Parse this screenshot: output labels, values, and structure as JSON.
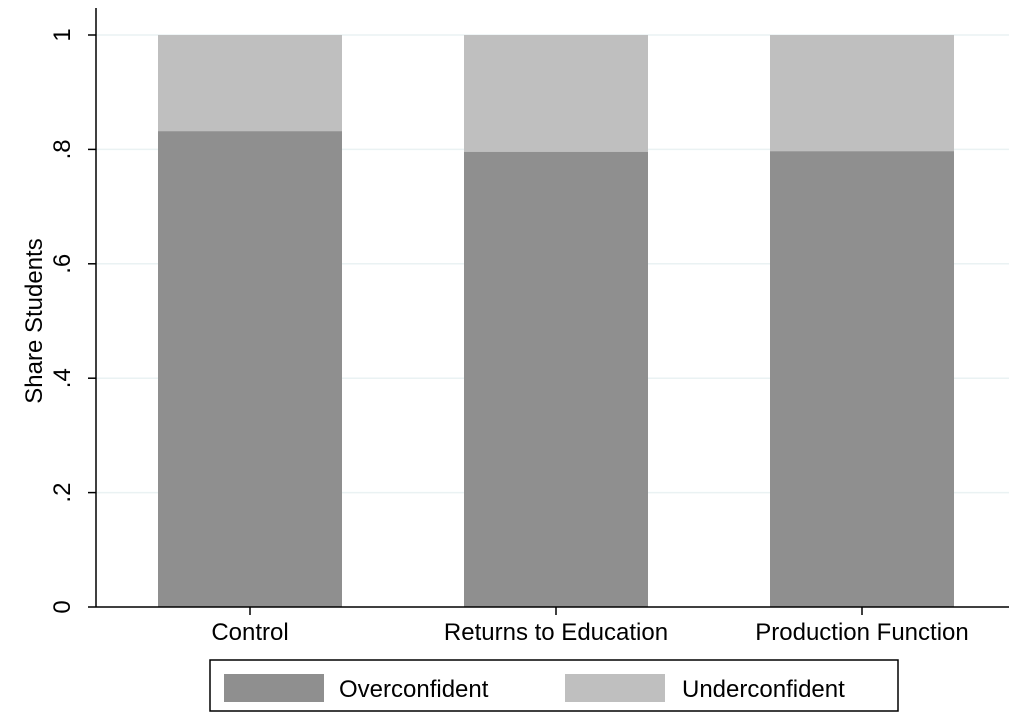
{
  "chart_data": {
    "type": "bar",
    "stacked": true,
    "ylabel": "Share Students",
    "xlabel": "",
    "ylim": [
      0,
      1
    ],
    "yticks": [
      0,
      0.2,
      0.4,
      0.6,
      0.8,
      1
    ],
    "ytick_labels": [
      "0",
      ".2",
      ".4",
      ".6",
      ".8",
      "1"
    ],
    "grid": true,
    "legend_position": "bottom",
    "categories": [
      "Control",
      "Returns to Education",
      "Production Function"
    ],
    "series": [
      {
        "name": "Overconfident",
        "color": "#8f8f8f",
        "values": [
          0.832,
          0.796,
          0.797
        ]
      },
      {
        "name": "Underconfident",
        "color": "#bfbfbf",
        "values": [
          0.168,
          0.204,
          0.203
        ]
      }
    ]
  }
}
